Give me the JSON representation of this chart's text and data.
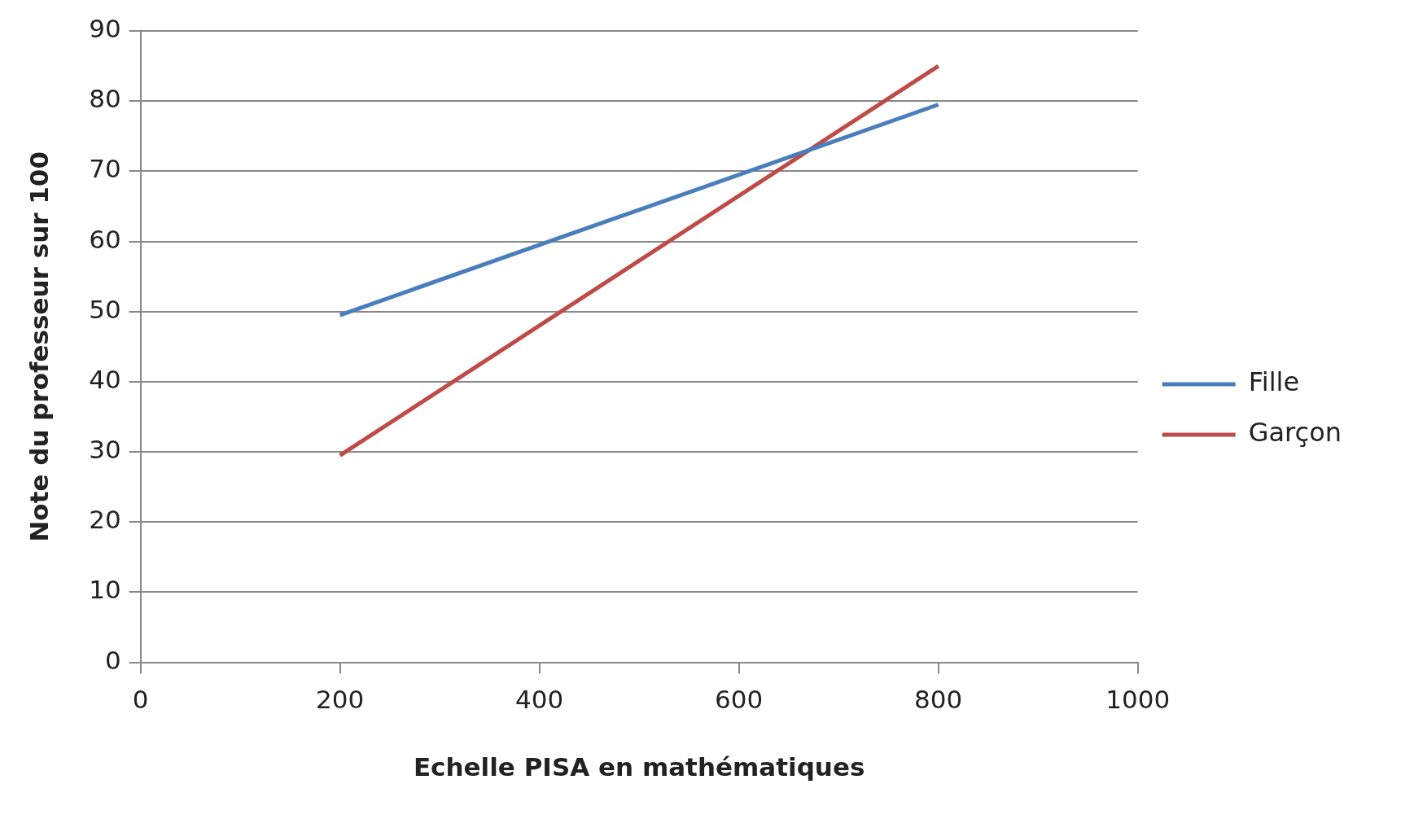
{
  "chart_data": {
    "type": "line",
    "xlabel": "Echelle PISA en mathématiques",
    "ylabel": "Note du professeur sur 100",
    "x": [
      200,
      800
    ],
    "series": [
      {
        "name": "Fille",
        "color": "#4a7ebb",
        "values": [
          49.5,
          79.5
        ]
      },
      {
        "name": "Garçon",
        "color": "#be4b48",
        "values": [
          29.5,
          85
        ]
      }
    ],
    "xlim": [
      0,
      1000
    ],
    "xticks": [
      0,
      200,
      400,
      600,
      800,
      1000
    ],
    "ylim": [
      0,
      90
    ],
    "yticks": [
      0,
      10,
      20,
      30,
      40,
      50,
      60,
      70,
      80,
      90
    ],
    "grid": "y",
    "legend": "right",
    "marker": "none",
    "line_style": "solid"
  }
}
